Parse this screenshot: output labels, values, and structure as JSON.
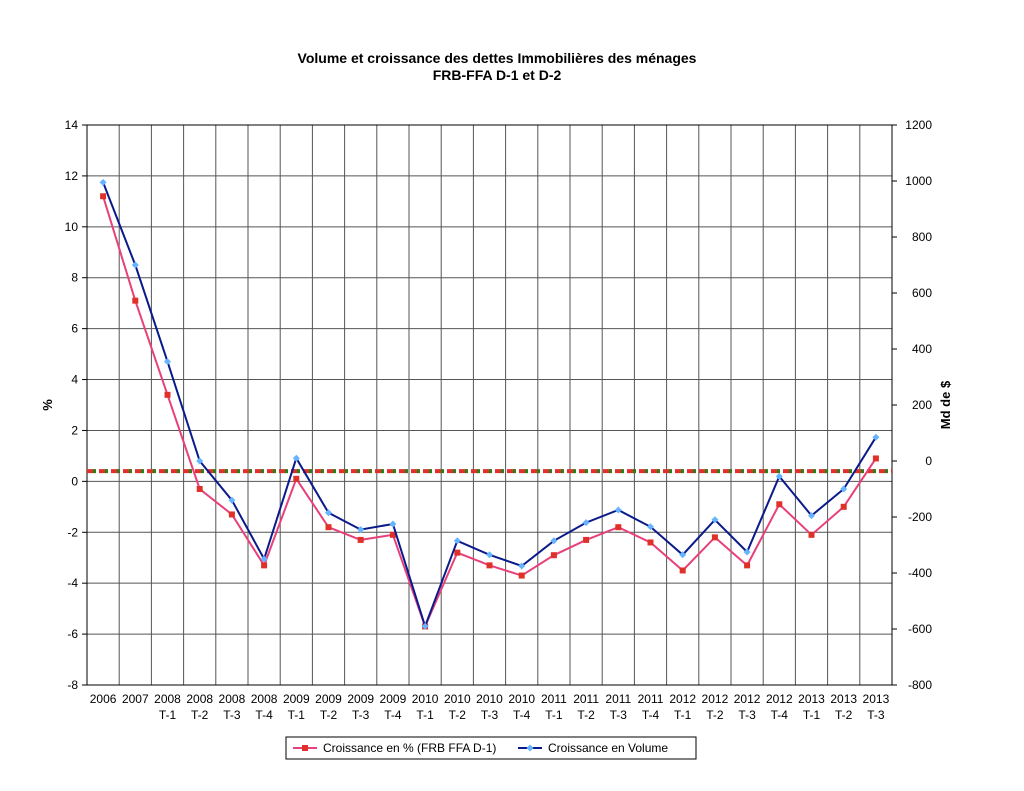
{
  "chart_data": {
    "type": "line",
    "title": "Volume et croissance des dettes Immobilières des ménages",
    "subtitle": "FRB-FFA D-1 et D-2",
    "ylabel_left": "%",
    "ylabel_right": "Md de $",
    "ylim_left": [
      -8,
      14
    ],
    "ylim_right": [
      -800,
      1200
    ],
    "yticks_left": [
      "14",
      "12",
      "10",
      "8",
      "6",
      "4",
      "2",
      "0",
      "-2",
      "-4",
      "-6",
      "-8"
    ],
    "yticks_right": [
      "1200",
      "1000",
      "800",
      "600",
      "400",
      "200",
      "0",
      "-200",
      "-400",
      "-600",
      "-800"
    ],
    "grid": true,
    "legend_position": "bottom",
    "categories": [
      [
        "2006",
        ""
      ],
      [
        "2007",
        ""
      ],
      [
        "2008",
        "T-1"
      ],
      [
        "2008",
        "T-2"
      ],
      [
        "2008",
        "T-3"
      ],
      [
        "2008",
        "T-4"
      ],
      [
        "2009",
        "T-1"
      ],
      [
        "2009",
        "T-2"
      ],
      [
        "2009",
        "T-3"
      ],
      [
        "2009",
        "T-4"
      ],
      [
        "2010",
        "T-1"
      ],
      [
        "2010",
        "T-2"
      ],
      [
        "2010",
        "T-3"
      ],
      [
        "2010",
        "T-4"
      ],
      [
        "2011",
        "T-1"
      ],
      [
        "2011",
        "T-2"
      ],
      [
        "2011",
        "T-3"
      ],
      [
        "2011",
        "T-4"
      ],
      [
        "2012",
        "T-1"
      ],
      [
        "2012",
        "T-2"
      ],
      [
        "2012",
        "T-3"
      ],
      [
        "2012",
        "T-4"
      ],
      [
        "2013",
        "T-1"
      ],
      [
        "2013",
        "T-2"
      ],
      [
        "2013",
        "T-3"
      ]
    ],
    "series": [
      {
        "name": "Croissance en %  (FRB FFA D-1)",
        "axis": "left",
        "color": "#e8407a",
        "marker_color": "#e0302a",
        "marker": "square",
        "values": [
          11.2,
          7.1,
          3.4,
          -0.3,
          -1.3,
          -3.3,
          0.1,
          -1.8,
          -2.3,
          -2.1,
          -5.7,
          -2.8,
          -3.3,
          -3.7,
          -2.9,
          -2.3,
          -1.8,
          -2.4,
          -3.5,
          -2.2,
          -3.3,
          -0.9,
          -2.1,
          -1.0,
          0.9
        ]
      },
      {
        "name": "Croissance en Volume",
        "axis": "right",
        "color": "#0a1a8a",
        "marker_color": "#66b3ff",
        "marker": "diamond",
        "values": [
          995,
          700,
          355,
          0,
          -140,
          -350,
          10,
          -185,
          -245,
          -225,
          -590,
          -285,
          -335,
          -375,
          -285,
          -220,
          -175,
          -235,
          -335,
          -210,
          -325,
          -55,
          -195,
          -100,
          85
        ]
      }
    ],
    "reference_line": {
      "axis": "left",
      "value": 0.4,
      "colors": [
        "#e0302a",
        "#2e7d1a"
      ]
    }
  }
}
